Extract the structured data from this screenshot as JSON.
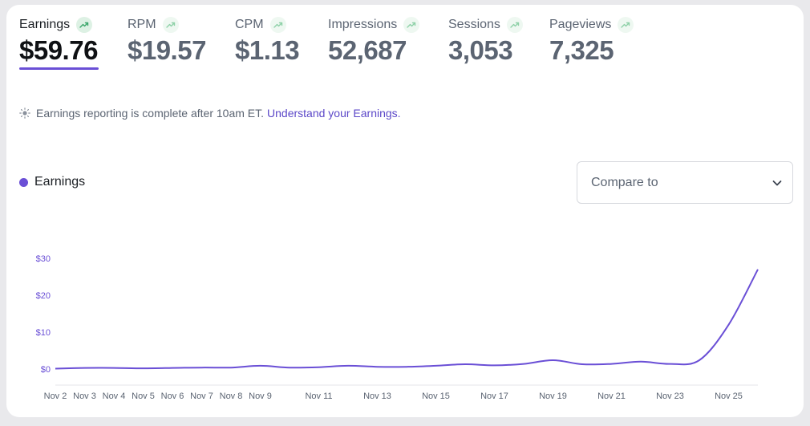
{
  "metrics": [
    {
      "label": "Earnings",
      "value": "$59.76",
      "active": true,
      "icon": "trending-up-icon"
    },
    {
      "label": "RPM",
      "value": "$19.57",
      "active": false,
      "icon": "trending-up-icon"
    },
    {
      "label": "CPM",
      "value": "$1.13",
      "active": false,
      "icon": "trending-up-icon"
    },
    {
      "label": "Impressions",
      "value": "52,687",
      "active": false,
      "icon": "trending-up-icon"
    },
    {
      "label": "Sessions",
      "value": "3,053",
      "active": false,
      "icon": "trending-up-icon"
    },
    {
      "label": "Pageviews",
      "value": "7,325",
      "active": false,
      "icon": "trending-up-icon"
    }
  ],
  "notice": {
    "icon": "sun-icon",
    "text": "Earnings reporting is complete after 10am ET.",
    "link": "Understand your Earnings."
  },
  "legend": {
    "label": "Earnings",
    "color": "#6a4fd6"
  },
  "compare": {
    "placeholder": "Compare to",
    "icon": "chevron-down-icon"
  },
  "chart_data": {
    "type": "line",
    "title": "",
    "xlabel": "",
    "ylabel": "",
    "ylim": [
      0,
      30
    ],
    "y_ticks": [
      "$0",
      "$10",
      "$20",
      "$30"
    ],
    "x_tick_labels": [
      "Nov 2",
      "Nov 3",
      "Nov 4",
      "Nov 5",
      "Nov 6",
      "Nov 7",
      "Nov 8",
      "Nov 9",
      "Nov 11",
      "Nov 13",
      "Nov 15",
      "Nov 17",
      "Nov 19",
      "Nov 21",
      "Nov 23",
      "Nov 25"
    ],
    "x": [
      "Nov 2",
      "Nov 3",
      "Nov 4",
      "Nov 5",
      "Nov 6",
      "Nov 7",
      "Nov 8",
      "Nov 9",
      "Nov 10",
      "Nov 11",
      "Nov 12",
      "Nov 13",
      "Nov 14",
      "Nov 15",
      "Nov 16",
      "Nov 17",
      "Nov 18",
      "Nov 19",
      "Nov 20",
      "Nov 21",
      "Nov 22",
      "Nov 23",
      "Nov 24",
      "Nov 25",
      "Nov 26"
    ],
    "series": [
      {
        "name": "Earnings",
        "color": "#6a4fd6",
        "values": [
          0.1,
          0.3,
          0.3,
          0.2,
          0.3,
          0.4,
          0.4,
          0.9,
          0.4,
          0.5,
          0.9,
          0.6,
          0.6,
          0.9,
          1.3,
          1.0,
          1.4,
          2.4,
          1.3,
          1.4,
          2.0,
          1.4,
          2.4,
          12.0,
          27.0
        ]
      }
    ],
    "grid": false,
    "legend_position": "top-left"
  }
}
